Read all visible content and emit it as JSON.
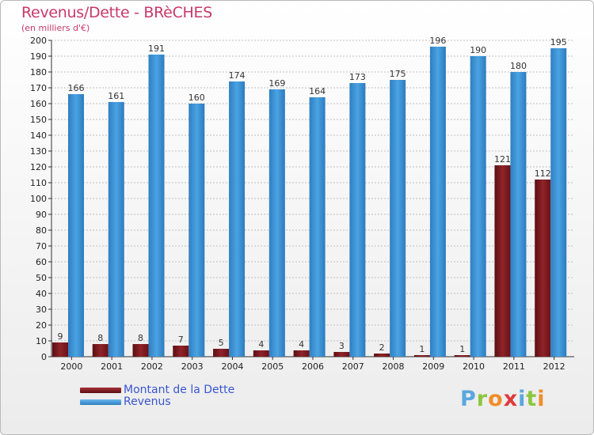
{
  "header": {
    "title": "Revenus/Dette - BRèCHES",
    "subtitle": "(en milliers d'€)"
  },
  "legend": {
    "debt_label": "Montant de la Dette",
    "revenue_label": "Revenus"
  },
  "logo": {
    "text": "Proxiti",
    "letters": [
      "P",
      "r",
      "o",
      "x",
      "i",
      "t",
      "i"
    ],
    "colors": [
      "#5aa7df",
      "#8cc63f",
      "#f28c28",
      "#e03a3a",
      "#5aa7df",
      "#8cc63f",
      "#f28c28"
    ]
  },
  "colors": {
    "debt": "#8b1c22",
    "revenue": "#3d95d6",
    "grid": "#bfbfbf",
    "title": "#c8386a",
    "legend_text": "#3a56cf"
  },
  "chart_data": {
    "type": "bar",
    "title": "Revenus/Dette - BRèCHES",
    "subtitle": "(en milliers d'€)",
    "xlabel": "",
    "ylabel": "",
    "categories": [
      "2000",
      "2001",
      "2002",
      "2003",
      "2004",
      "2005",
      "2006",
      "2007",
      "2008",
      "2009",
      "2010",
      "2011",
      "2012"
    ],
    "series": [
      {
        "name": "Montant de la Dette",
        "values": [
          9,
          8,
          8,
          7,
          5,
          4,
          4,
          3,
          2,
          1,
          1,
          121,
          112
        ]
      },
      {
        "name": "Revenus",
        "values": [
          166,
          161,
          191,
          160,
          174,
          169,
          164,
          173,
          175,
          196,
          190,
          180,
          195
        ]
      }
    ],
    "ylim": [
      0,
      200
    ],
    "ytick_step": 10,
    "grid": true,
    "legend_position": "bottom-left"
  }
}
